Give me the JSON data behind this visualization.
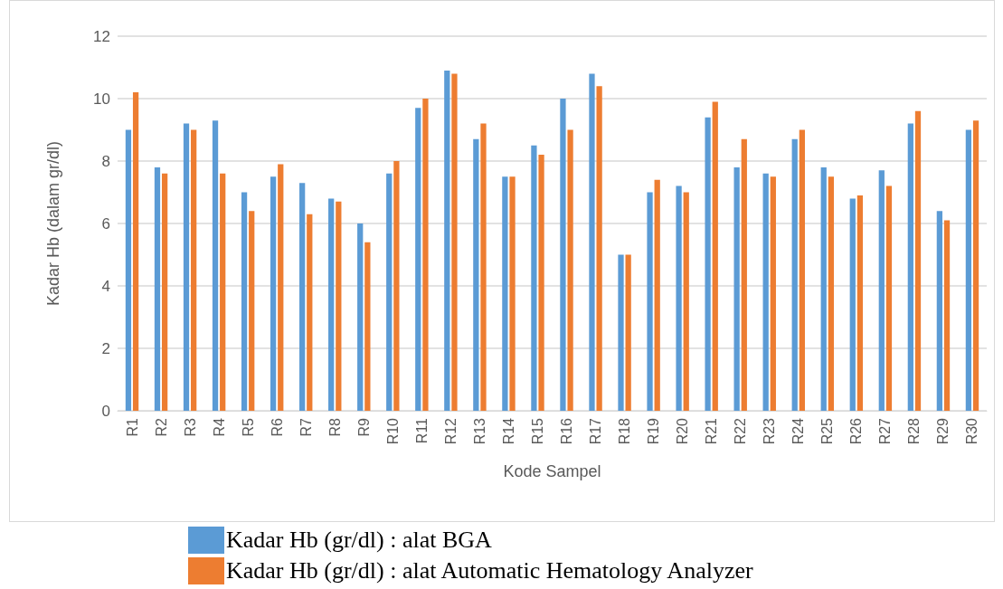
{
  "chart_data": {
    "type": "bar",
    "xlabel": "Kode Sampel",
    "ylabel": "Kadar Hb (dalam gr/dl)",
    "categories": [
      "R1",
      "R2",
      "R3",
      "R4",
      "R5",
      "R6",
      "R7",
      "R8",
      "R9",
      "R10",
      "R11",
      "R12",
      "R13",
      "R14",
      "R15",
      "R16",
      "R17",
      "R18",
      "R19",
      "R20",
      "R21",
      "R22",
      "R23",
      "R24",
      "R25",
      "R26",
      "R27",
      "R28",
      "R29",
      "R30"
    ],
    "series": [
      {
        "name": "Kadar Hb (gr/dl) : alat BGA",
        "color": "#5b9bd5",
        "values": [
          9.0,
          7.8,
          9.2,
          9.3,
          7.0,
          7.5,
          7.3,
          6.8,
          6.0,
          7.6,
          9.7,
          10.9,
          8.7,
          7.5,
          8.5,
          10.0,
          10.8,
          5.0,
          7.0,
          7.2,
          9.4,
          7.8,
          7.6,
          8.7,
          7.8,
          6.8,
          7.7,
          9.2,
          6.4,
          9.0
        ]
      },
      {
        "name": "Kadar Hb (gr/dl) : alat Automatic Hematology Analyzer",
        "color": "#ed7d31",
        "values": [
          10.2,
          7.6,
          9.0,
          7.6,
          6.4,
          7.9,
          6.3,
          6.7,
          5.4,
          8.0,
          10.0,
          10.8,
          9.2,
          7.5,
          8.2,
          9.0,
          10.4,
          5.0,
          7.4,
          7.0,
          9.9,
          8.7,
          7.5,
          9.0,
          7.5,
          6.9,
          7.2,
          9.6,
          6.1,
          9.3
        ]
      }
    ],
    "ylim": [
      0,
      12
    ],
    "yticks": [
      0,
      2,
      4,
      6,
      8,
      10,
      12
    ],
    "grid": "y",
    "legend": "bottom"
  }
}
